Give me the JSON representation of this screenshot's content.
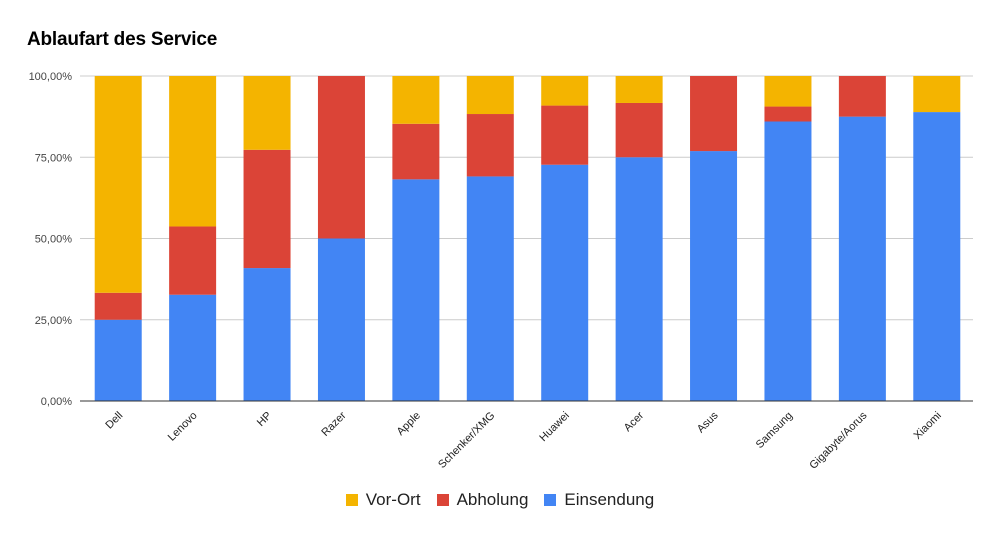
{
  "chart_data": {
    "type": "bar",
    "stacked": true,
    "title": "Ablaufart des Service",
    "xlabel": "",
    "ylabel": "",
    "ylim": [
      0,
      100
    ],
    "yticks": [
      0,
      25,
      50,
      75,
      100
    ],
    "ytick_labels": [
      "0,00%",
      "25,00%",
      "50,00%",
      "75,00%",
      "100,00%"
    ],
    "grid": true,
    "legend_position": "bottom",
    "categories": [
      "Dell",
      "Lenovo",
      "HP",
      "Razer",
      "Apple",
      "Schenker/XMG",
      "Huawei",
      "Acer",
      "Asus",
      "Samsung",
      "Gigabyte/Aorus",
      "Xiaomi"
    ],
    "series": [
      {
        "name": "Einsendung",
        "color": "#4285f4",
        "values": [
          25.0,
          32.7,
          40.9,
          50.0,
          68.2,
          69.1,
          72.7,
          75.0,
          76.9,
          86.0,
          87.5,
          88.9
        ]
      },
      {
        "name": "Abholung",
        "color": "#db4437",
        "values": [
          8.3,
          21.0,
          36.4,
          50.0,
          17.1,
          19.2,
          18.2,
          16.7,
          23.1,
          4.6,
          12.5,
          0.0
        ]
      },
      {
        "name": "Vor-Ort",
        "color": "#f4b400",
        "values": [
          66.7,
          46.3,
          22.7,
          0.0,
          14.7,
          11.7,
          9.1,
          8.3,
          0.0,
          9.4,
          0.0,
          11.1
        ]
      }
    ],
    "legend_order": [
      "Vor-Ort",
      "Abholung",
      "Einsendung"
    ]
  }
}
